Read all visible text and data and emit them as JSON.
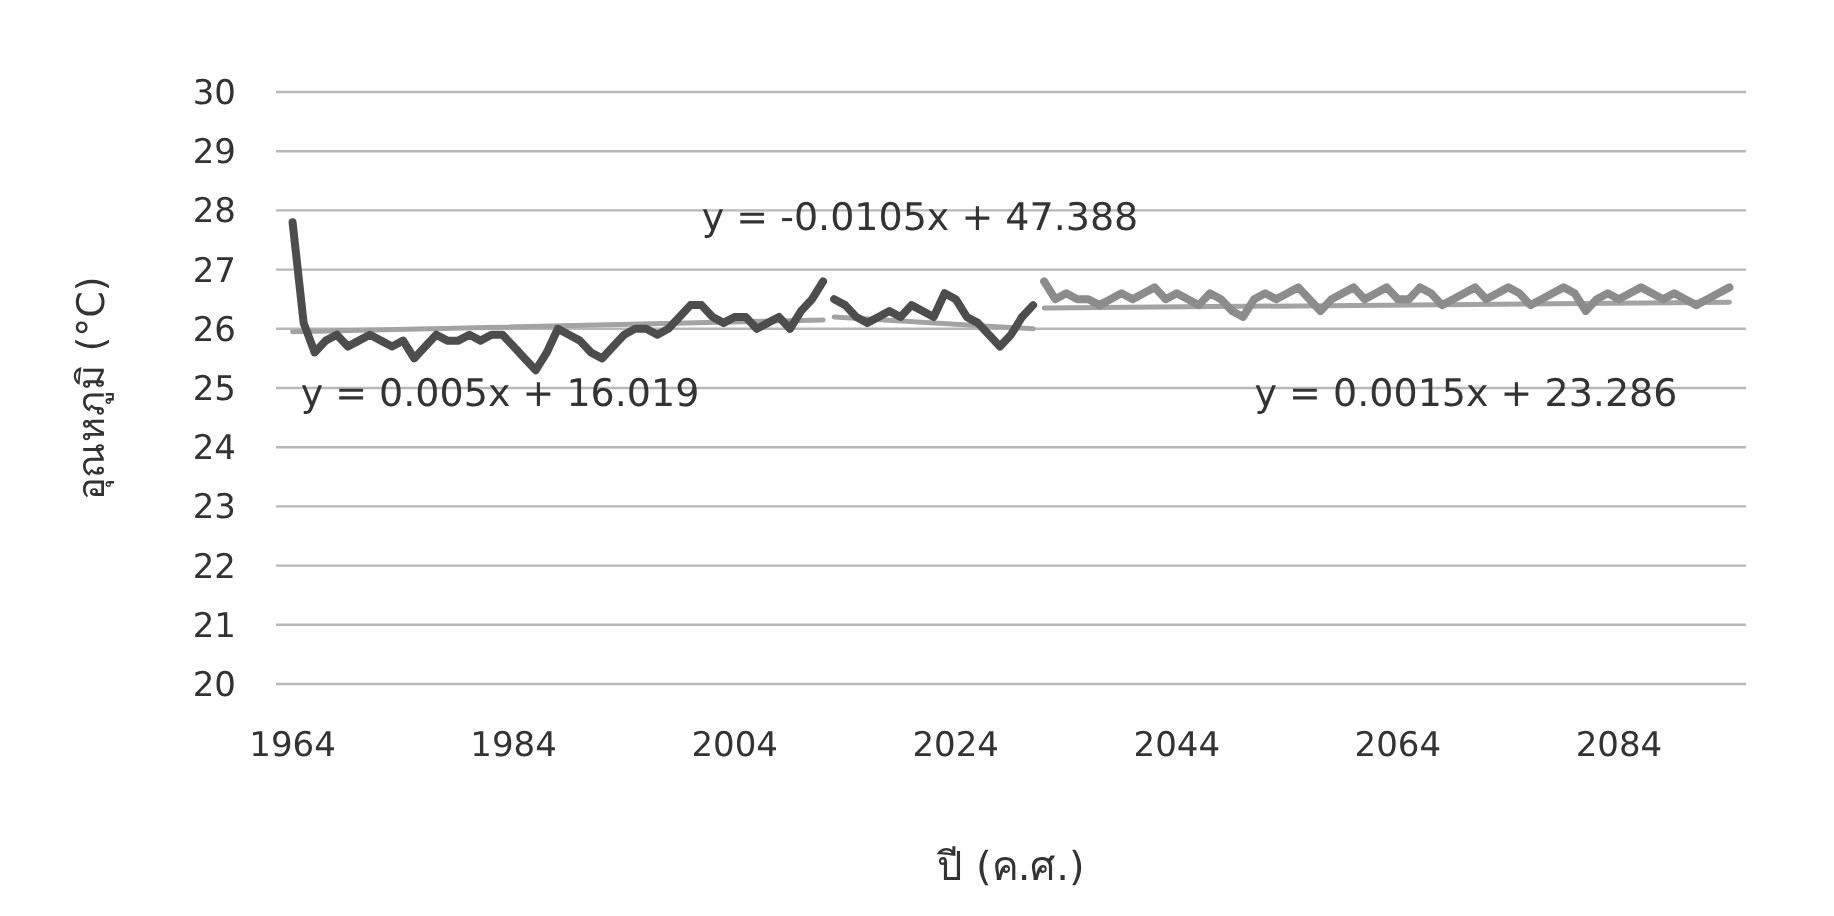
{
  "chart_data": {
    "type": "line",
    "xlabel": "ปี (ค.ศ.)",
    "ylabel": "อุณหภูมิ (°C)",
    "xlim": [
      1962.5,
      2095.5
    ],
    "ylim": [
      20,
      30
    ],
    "xticks": [
      1964,
      1984,
      2004,
      2024,
      2044,
      2064,
      2084
    ],
    "yticks": [
      20,
      21,
      22,
      23,
      24,
      25,
      26,
      27,
      28,
      29,
      30
    ],
    "grid": "y",
    "series": [
      {
        "type": "line",
        "color": "#a3a3a3",
        "x": [
          1964,
          2012
        ],
        "values": [
          25.95,
          26.15
        ]
      },
      {
        "type": "line",
        "color": "#a3a3a3",
        "x": [
          2013,
          2031
        ],
        "values": [
          26.2,
          26.0
        ]
      },
      {
        "type": "line",
        "color": "#a3a3a3",
        "x": [
          2032,
          2094
        ],
        "values": [
          26.35,
          26.45
        ]
      },
      {
        "color": "#4d4d4d",
        "x": [
          1964,
          1965,
          1966,
          1967,
          1968,
          1969,
          1970,
          1971,
          1972,
          1973,
          1974,
          1975,
          1976,
          1977,
          1978,
          1979,
          1980,
          1981,
          1982,
          1983,
          1984,
          1985,
          1986,
          1987,
          1988,
          1989,
          1990,
          1991,
          1992,
          1993,
          1994,
          1995,
          1996,
          1997,
          1998,
          1999,
          2000,
          2001,
          2002,
          2003,
          2004,
          2005,
          2006,
          2007,
          2008,
          2009,
          2010,
          2011,
          2012
        ],
        "values": [
          27.8,
          26.1,
          25.6,
          25.8,
          25.9,
          25.7,
          25.8,
          25.9,
          25.8,
          25.7,
          25.8,
          25.5,
          25.7,
          25.9,
          25.8,
          25.8,
          25.9,
          25.8,
          25.9,
          25.9,
          25.7,
          25.5,
          25.3,
          25.6,
          26.0,
          25.9,
          25.8,
          25.6,
          25.5,
          25.7,
          25.9,
          26.0,
          26.0,
          25.9,
          26.0,
          26.2,
          26.4,
          26.4,
          26.2,
          26.1,
          26.2,
          26.2,
          26.0,
          26.1,
          26.2,
          26.0,
          26.3,
          26.5,
          26.8
        ]
      },
      {
        "color": "#4d4d4d",
        "x": [
          2013,
          2014,
          2015,
          2016,
          2017,
          2018,
          2019,
          2020,
          2021,
          2022,
          2023,
          2024,
          2025,
          2026,
          2027,
          2028,
          2029,
          2030,
          2031
        ],
        "values": [
          26.5,
          26.4,
          26.2,
          26.1,
          26.2,
          26.3,
          26.2,
          26.4,
          26.3,
          26.2,
          26.6,
          26.5,
          26.2,
          26.1,
          25.9,
          25.7,
          25.9,
          26.2,
          26.4
        ]
      },
      {
        "color": "#8c8c8c",
        "x": [
          2032,
          2033,
          2034,
          2035,
          2036,
          2037,
          2038,
          2039,
          2040,
          2041,
          2042,
          2043,
          2044,
          2045,
          2046,
          2047,
          2048,
          2049,
          2050,
          2051,
          2052,
          2053,
          2054,
          2055,
          2056,
          2057,
          2058,
          2059,
          2060,
          2061,
          2062,
          2063,
          2064,
          2065,
          2066,
          2067,
          2068,
          2069,
          2070,
          2071,
          2072,
          2073,
          2074,
          2075,
          2076,
          2077,
          2078,
          2079,
          2080,
          2081,
          2082,
          2083,
          2084,
          2085,
          2086,
          2087,
          2088,
          2089,
          2090,
          2091,
          2092,
          2093,
          2094
        ],
        "values": [
          26.8,
          26.5,
          26.6,
          26.5,
          26.5,
          26.4,
          26.5,
          26.6,
          26.5,
          26.6,
          26.7,
          26.5,
          26.6,
          26.5,
          26.4,
          26.6,
          26.5,
          26.3,
          26.2,
          26.5,
          26.6,
          26.5,
          26.6,
          26.7,
          26.5,
          26.3,
          26.5,
          26.6,
          26.7,
          26.5,
          26.6,
          26.7,
          26.5,
          26.5,
          26.7,
          26.6,
          26.4,
          26.5,
          26.6,
          26.7,
          26.5,
          26.6,
          26.7,
          26.6,
          26.4,
          26.5,
          26.6,
          26.7,
          26.6,
          26.3,
          26.5,
          26.6,
          26.5,
          26.6,
          26.7,
          26.6,
          26.5,
          26.6,
          26.5,
          26.4,
          26.5,
          26.6,
          26.7
        ]
      }
    ],
    "annotations": [
      "y = 0.005x + 16.019",
      "y = -0.0105x + 47.388",
      "y = 0.0015x + 23.286"
    ]
  }
}
